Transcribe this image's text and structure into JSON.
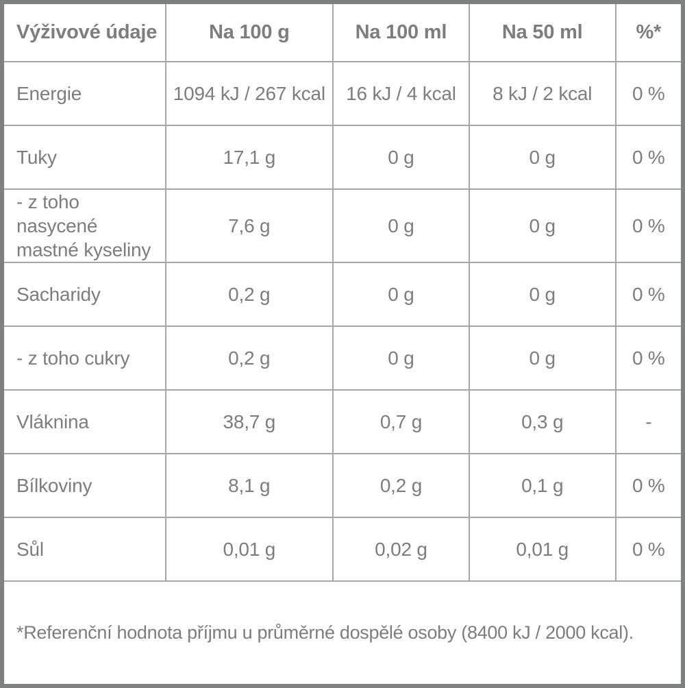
{
  "table": {
    "title": "Výživové údaje",
    "headers": {
      "nutrient": "Výživové údaje",
      "per_100g": "Na 100 g",
      "per_100ml": "Na 100 ml",
      "per_50ml": "Na 50 ml",
      "pct": "%*"
    },
    "rows": [
      {
        "label": "Energie",
        "per_100g": "1094 kJ / 267 kcal",
        "per_100ml": "16 kJ / 4 kcal",
        "per_50ml": "8 kJ / 2 kcal",
        "pct": "0 %"
      },
      {
        "label": "Tuky",
        "per_100g": "17,1 g",
        "per_100ml": "0 g",
        "per_50ml": "0 g",
        "pct": "0 %"
      },
      {
        "label": "- z toho nasycené mastné kyseliny",
        "per_100g": "7,6 g",
        "per_100ml": "0 g",
        "per_50ml": "0 g",
        "pct": "0 %"
      },
      {
        "label": "Sacharidy",
        "per_100g": "0,2 g",
        "per_100ml": "0 g",
        "per_50ml": "0 g",
        "pct": "0 %"
      },
      {
        "label": "- z toho cukry",
        "per_100g": "0,2 g",
        "per_100ml": "0 g",
        "per_50ml": "0 g",
        "pct": "0 %"
      },
      {
        "label": "Vláknina",
        "per_100g": "38,7 g",
        "per_100ml": "0,7 g",
        "per_50ml": "0,3 g",
        "pct": "-"
      },
      {
        "label": "Bílkoviny",
        "per_100g": "8,1 g",
        "per_100ml": "0,2 g",
        "per_50ml": "0,1 g",
        "pct": "0 %"
      },
      {
        "label": "Sůl",
        "per_100g": "0,01 g",
        "per_100ml": "0,02 g",
        "per_50ml": "0,01 g",
        "pct": "0 %"
      }
    ],
    "footnote": "*Referenční hodnota příjmu u průměrné dospělé osoby (8400 kJ / 2000 kcal).",
    "colors": {
      "text": "#7d7d7d",
      "grid_line": "#a6a6a6",
      "outer_border": "#7f8080",
      "background": "#ffffff"
    }
  }
}
